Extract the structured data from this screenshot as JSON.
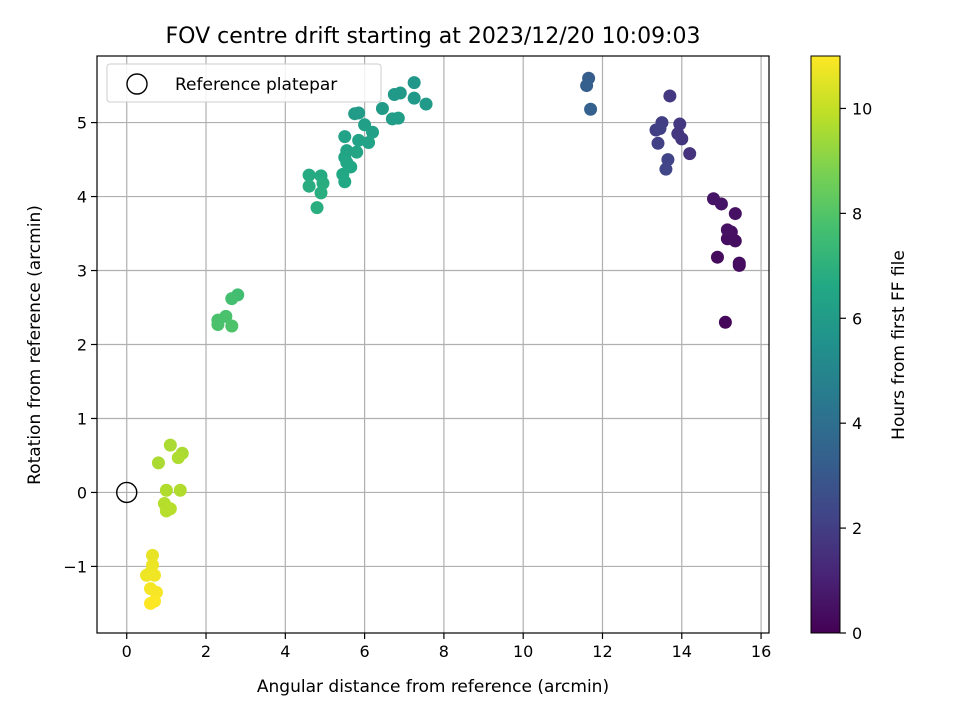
{
  "chart_data": {
    "type": "scatter",
    "title": "FOV centre drift starting at 2023/12/20 10:09:03",
    "xlabel": "Angular distance from reference (arcmin)",
    "ylabel": "Rotation from reference (arcmin)",
    "xlim": [
      -0.75,
      16.2
    ],
    "ylim": [
      -1.9,
      5.9
    ],
    "xticks": [
      0,
      2,
      4,
      6,
      8,
      10,
      12,
      14,
      16
    ],
    "yticks": [
      -1,
      0,
      1,
      2,
      3,
      4,
      5
    ],
    "grid": true,
    "legend": {
      "placement": "top-left",
      "entries": [
        "Reference platepar"
      ]
    },
    "reference_point": {
      "name": "Reference platepar",
      "x": 0,
      "y": 0
    },
    "colorbar": {
      "label": "Hours from first FF file",
      "colormap": "viridis",
      "range": [
        0,
        11
      ],
      "ticks": [
        0,
        2,
        4,
        6,
        8,
        10
      ]
    },
    "points": [
      {
        "x": 15.1,
        "y": 2.3,
        "c": 0.2
      },
      {
        "x": 14.9,
        "y": 3.18,
        "c": 0.3
      },
      {
        "x": 15.45,
        "y": 3.07,
        "c": 0.3
      },
      {
        "x": 15.45,
        "y": 3.1,
        "c": 0.35
      },
      {
        "x": 15.35,
        "y": 3.4,
        "c": 0.4
      },
      {
        "x": 15.15,
        "y": 3.43,
        "c": 0.4
      },
      {
        "x": 15.25,
        "y": 3.52,
        "c": 0.45
      },
      {
        "x": 15.15,
        "y": 3.55,
        "c": 0.5
      },
      {
        "x": 15.35,
        "y": 3.77,
        "c": 0.5
      },
      {
        "x": 15.0,
        "y": 3.9,
        "c": 0.6
      },
      {
        "x": 14.8,
        "y": 3.97,
        "c": 0.6
      },
      {
        "x": 14.2,
        "y": 4.58,
        "c": 1.6
      },
      {
        "x": 14.0,
        "y": 4.78,
        "c": 1.7
      },
      {
        "x": 13.9,
        "y": 4.85,
        "c": 1.75
      },
      {
        "x": 13.95,
        "y": 4.98,
        "c": 1.8
      },
      {
        "x": 13.5,
        "y": 5.0,
        "c": 2.0
      },
      {
        "x": 13.35,
        "y": 4.9,
        "c": 2.0
      },
      {
        "x": 13.45,
        "y": 4.92,
        "c": 2.05
      },
      {
        "x": 13.4,
        "y": 4.72,
        "c": 2.1
      },
      {
        "x": 13.65,
        "y": 4.5,
        "c": 2.2
      },
      {
        "x": 13.6,
        "y": 4.37,
        "c": 2.3
      },
      {
        "x": 13.7,
        "y": 5.36,
        "c": 1.8
      },
      {
        "x": 11.65,
        "y": 5.6,
        "c": 3.2
      },
      {
        "x": 11.6,
        "y": 5.5,
        "c": 3.3
      },
      {
        "x": 11.7,
        "y": 5.18,
        "c": 3.4
      },
      {
        "x": 7.25,
        "y": 5.54,
        "c": 5.8
      },
      {
        "x": 6.9,
        "y": 5.4,
        "c": 5.9
      },
      {
        "x": 6.75,
        "y": 5.38,
        "c": 5.9
      },
      {
        "x": 7.25,
        "y": 5.33,
        "c": 5.9
      },
      {
        "x": 7.55,
        "y": 5.25,
        "c": 5.95
      },
      {
        "x": 6.45,
        "y": 5.19,
        "c": 6.0
      },
      {
        "x": 5.75,
        "y": 5.12,
        "c": 6.0
      },
      {
        "x": 5.85,
        "y": 5.13,
        "c": 6.05
      },
      {
        "x": 6.85,
        "y": 5.06,
        "c": 6.1
      },
      {
        "x": 6.7,
        "y": 5.05,
        "c": 6.1
      },
      {
        "x": 6.0,
        "y": 4.97,
        "c": 6.2
      },
      {
        "x": 6.2,
        "y": 4.87,
        "c": 6.2
      },
      {
        "x": 5.5,
        "y": 4.81,
        "c": 6.3
      },
      {
        "x": 5.85,
        "y": 4.76,
        "c": 6.3
      },
      {
        "x": 6.1,
        "y": 4.73,
        "c": 6.3
      },
      {
        "x": 5.55,
        "y": 4.62,
        "c": 6.35
      },
      {
        "x": 5.8,
        "y": 4.6,
        "c": 6.4
      },
      {
        "x": 5.5,
        "y": 4.53,
        "c": 6.45
      },
      {
        "x": 5.55,
        "y": 4.46,
        "c": 6.5
      },
      {
        "x": 5.65,
        "y": 4.4,
        "c": 6.55
      },
      {
        "x": 5.45,
        "y": 4.3,
        "c": 6.6
      },
      {
        "x": 5.5,
        "y": 4.2,
        "c": 6.6
      },
      {
        "x": 4.6,
        "y": 4.29,
        "c": 6.7
      },
      {
        "x": 4.9,
        "y": 4.28,
        "c": 6.7
      },
      {
        "x": 4.95,
        "y": 4.18,
        "c": 6.8
      },
      {
        "x": 4.6,
        "y": 4.14,
        "c": 6.8
      },
      {
        "x": 4.9,
        "y": 4.05,
        "c": 6.9
      },
      {
        "x": 4.8,
        "y": 3.85,
        "c": 6.9
      },
      {
        "x": 2.8,
        "y": 2.67,
        "c": 7.6
      },
      {
        "x": 2.65,
        "y": 2.62,
        "c": 7.7
      },
      {
        "x": 2.5,
        "y": 2.38,
        "c": 7.8
      },
      {
        "x": 2.3,
        "y": 2.33,
        "c": 7.8
      },
      {
        "x": 2.3,
        "y": 2.27,
        "c": 7.85
      },
      {
        "x": 2.65,
        "y": 2.25,
        "c": 7.9
      },
      {
        "x": 1.1,
        "y": 0.64,
        "c": 9.6
      },
      {
        "x": 1.4,
        "y": 0.53,
        "c": 9.6
      },
      {
        "x": 1.3,
        "y": 0.47,
        "c": 9.65
      },
      {
        "x": 0.8,
        "y": 0.4,
        "c": 9.6
      },
      {
        "x": 1.0,
        "y": 0.03,
        "c": 9.7
      },
      {
        "x": 1.35,
        "y": 0.03,
        "c": 9.7
      },
      {
        "x": 0.95,
        "y": -0.15,
        "c": 9.75
      },
      {
        "x": 1.1,
        "y": -0.22,
        "c": 9.8
      },
      {
        "x": 1.0,
        "y": -0.25,
        "c": 9.8
      },
      {
        "x": 0.65,
        "y": -0.85,
        "c": 10.6
      },
      {
        "x": 0.65,
        "y": -0.98,
        "c": 10.7
      },
      {
        "x": 0.6,
        "y": -1.08,
        "c": 10.7
      },
      {
        "x": 0.5,
        "y": -1.12,
        "c": 10.75
      },
      {
        "x": 0.7,
        "y": -1.12,
        "c": 10.8
      },
      {
        "x": 0.6,
        "y": -1.3,
        "c": 10.85
      },
      {
        "x": 0.75,
        "y": -1.35,
        "c": 10.9
      },
      {
        "x": 0.7,
        "y": -1.47,
        "c": 10.95
      },
      {
        "x": 0.6,
        "y": -1.5,
        "c": 11.0
      }
    ]
  }
}
